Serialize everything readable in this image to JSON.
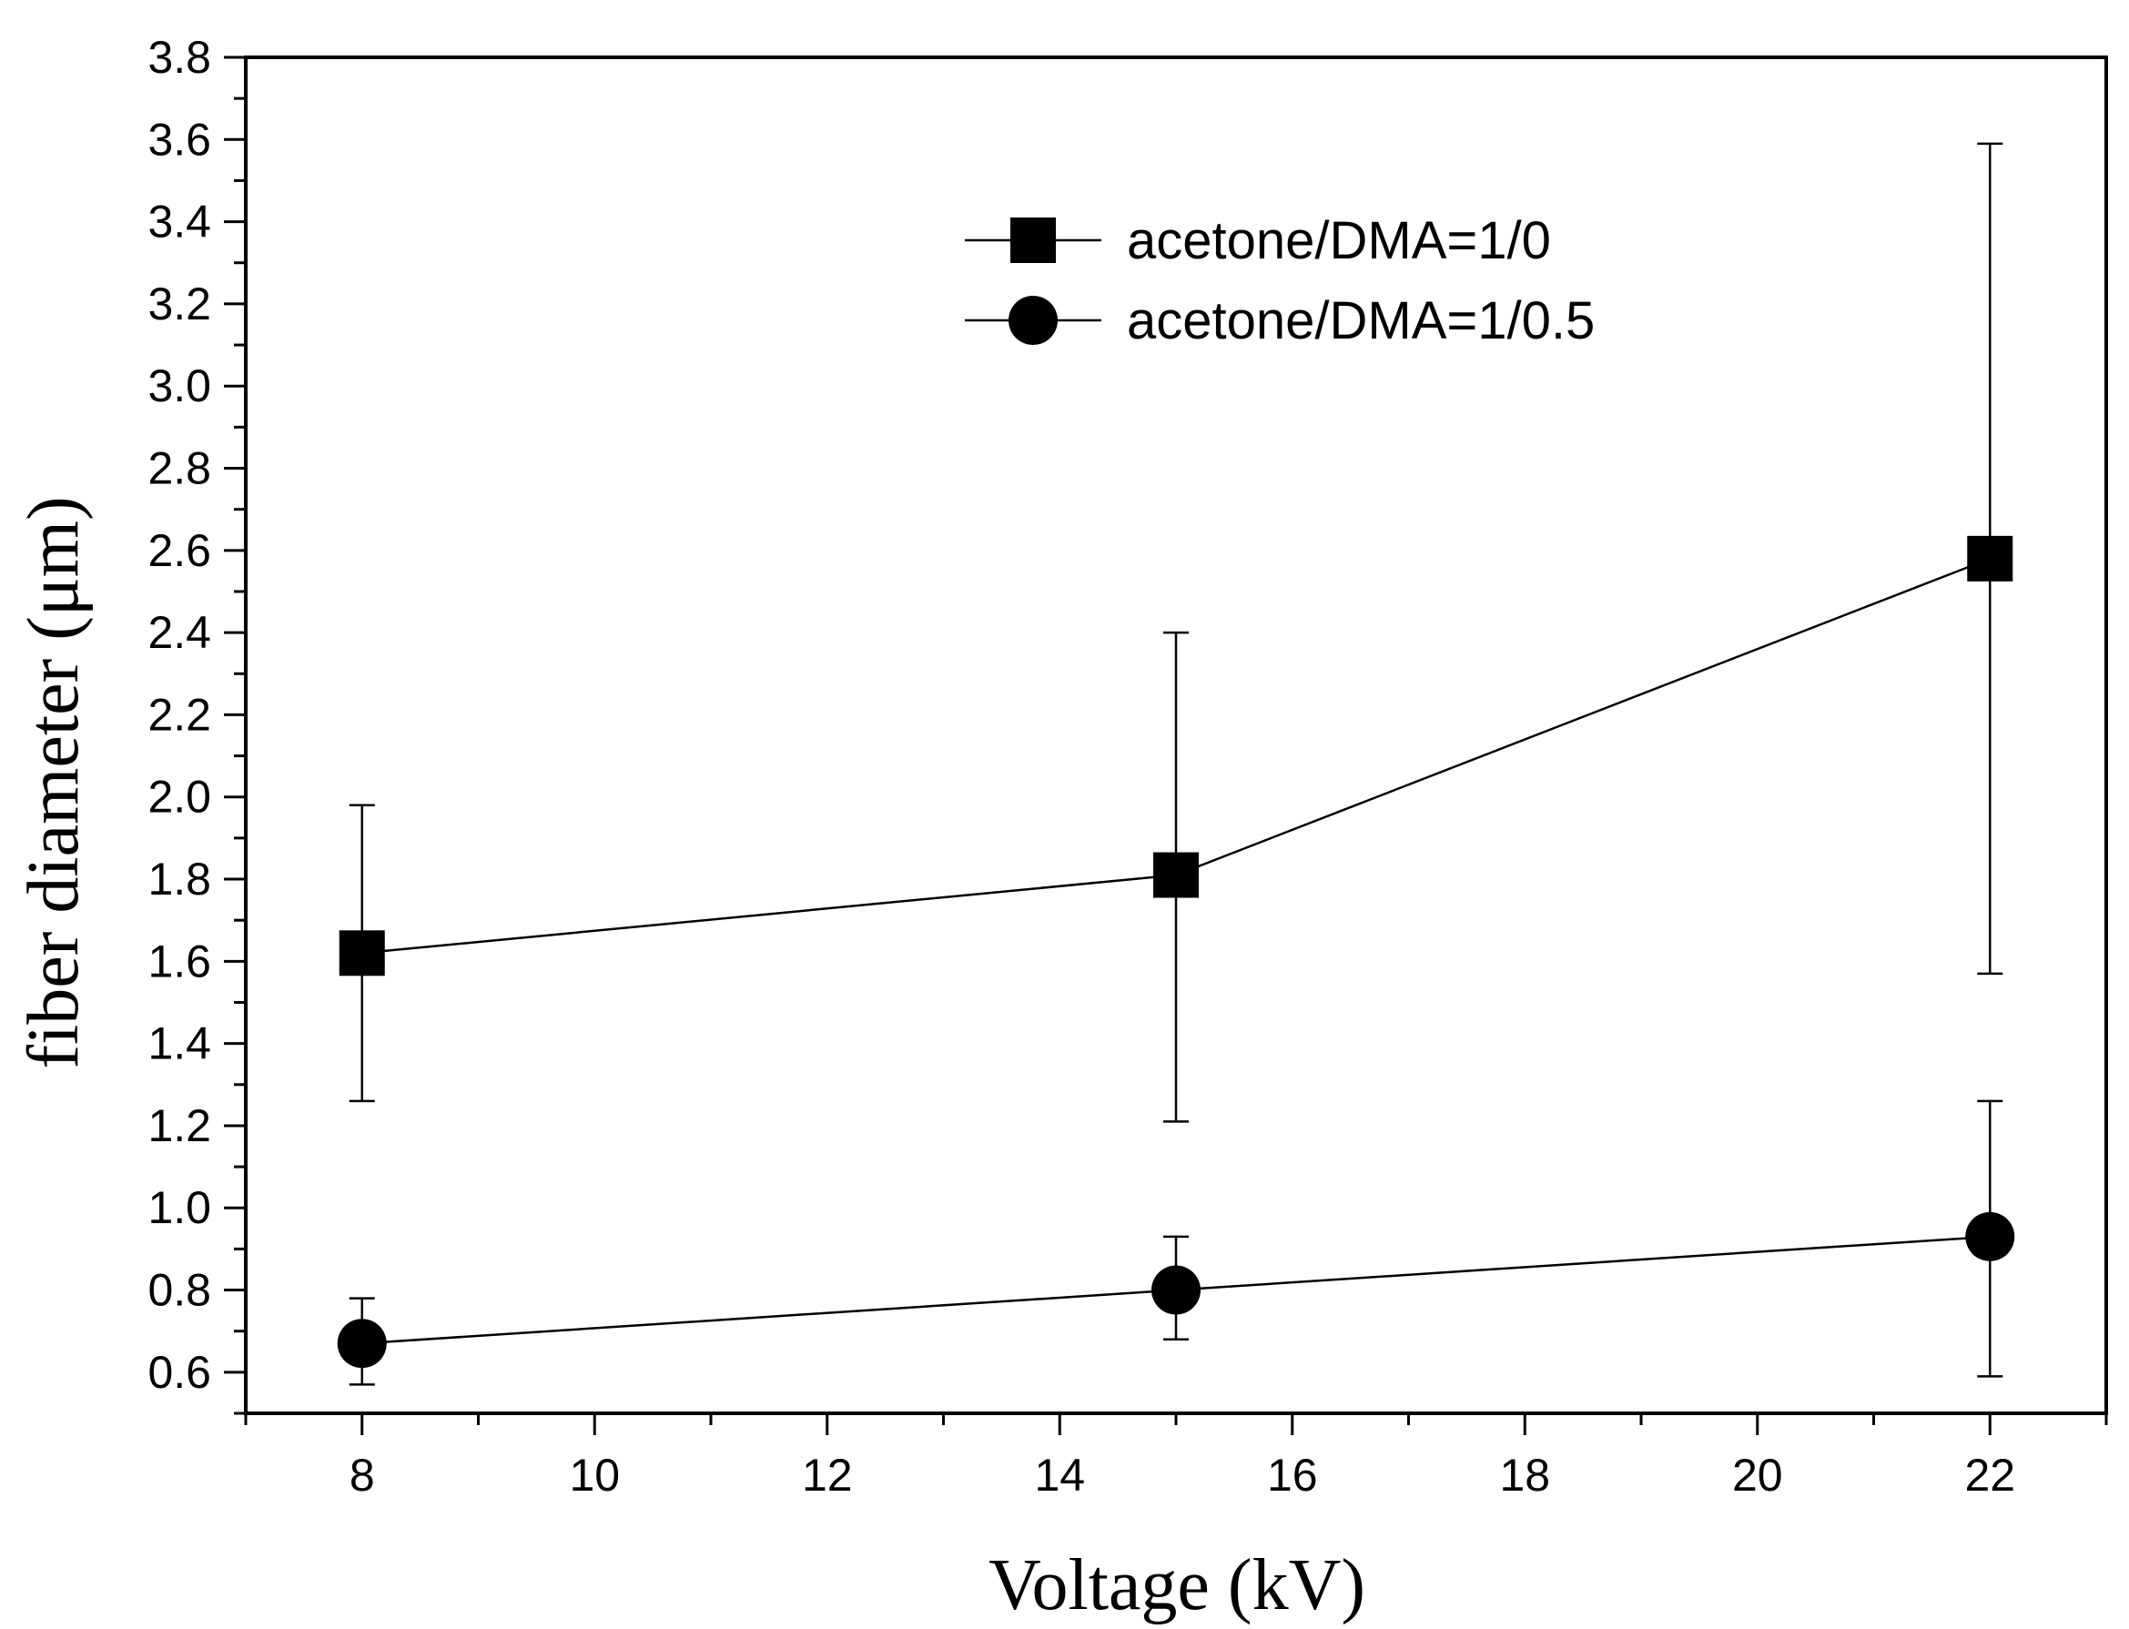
{
  "chart_data": {
    "type": "line",
    "title": "",
    "xlabel": "Voltage (kV)",
    "ylabel": "fiber diameter (μm)",
    "xlim": [
      7,
      23
    ],
    "ylim": [
      0.5,
      3.8
    ],
    "x_ticks": [
      8,
      10,
      12,
      14,
      16,
      18,
      20,
      22
    ],
    "x_tick_labels": [
      "8",
      "10",
      "12",
      "14",
      "16",
      "18",
      "20",
      "22"
    ],
    "y_ticks": [
      0.6,
      0.8,
      1.0,
      1.2,
      1.4,
      1.6,
      1.8,
      2.0,
      2.2,
      2.4,
      2.6,
      2.8,
      3.0,
      3.2,
      3.4,
      3.6,
      3.8
    ],
    "y_tick_labels": [
      "0.6",
      "0.8",
      "1.0",
      "1.2",
      "1.4",
      "1.6",
      "1.8",
      "2.0",
      "2.2",
      "2.4",
      "2.6",
      "2.8",
      "3.0",
      "3.2",
      "3.4",
      "3.6",
      "3.8"
    ],
    "grid": false,
    "legend_position": "top-right",
    "series": [
      {
        "name": "acetone/DMA=1/0",
        "marker": "square",
        "x": [
          8,
          15,
          22
        ],
        "y": [
          1.62,
          1.81,
          2.58
        ],
        "error_low": [
          1.26,
          1.21,
          1.57
        ],
        "error_high": [
          1.98,
          2.4,
          3.59
        ]
      },
      {
        "name": "acetone/DMA=1/0.5",
        "marker": "circle",
        "x": [
          8,
          15,
          22
        ],
        "y": [
          0.67,
          0.8,
          0.93
        ],
        "error_low": [
          0.57,
          0.68,
          0.59
        ],
        "error_high": [
          0.78,
          0.93,
          1.26
        ]
      }
    ]
  }
}
